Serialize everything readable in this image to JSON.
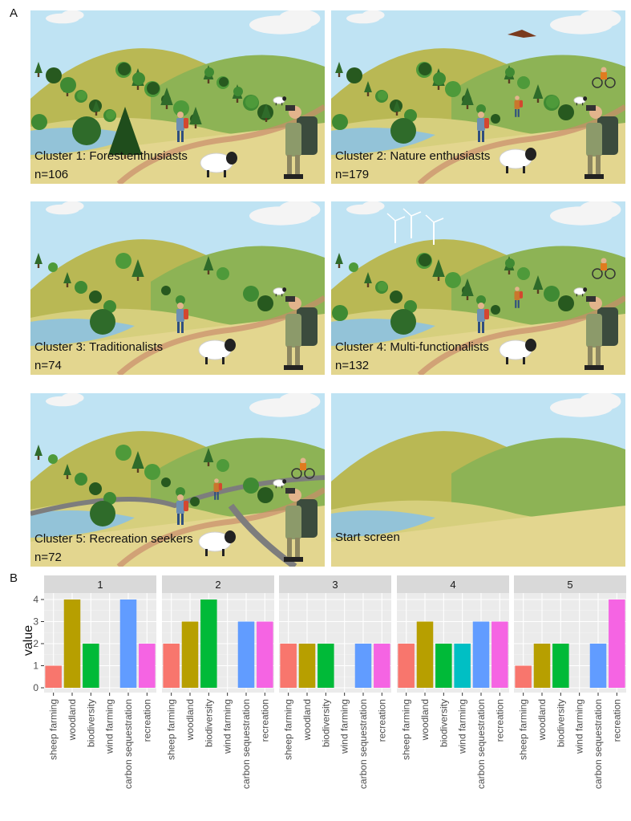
{
  "panel_labels": {
    "a": "A",
    "b": "B"
  },
  "scenes": [
    {
      "title": "Cluster 1: Forest enthusiasts",
      "n": "n=106"
    },
    {
      "title": "Cluster 2: Nature enthusiasts",
      "n": "n=179"
    },
    {
      "title": "Cluster 3: Traditionalists",
      "n": "n=74"
    },
    {
      "title": "Cluster 4: Multi-functionalists",
      "n": "n=132"
    },
    {
      "title": "Cluster 5: Recreation seekers",
      "n": "n=72"
    },
    {
      "title": "Start screen",
      "n": ""
    }
  ],
  "chart_data": {
    "type": "bar",
    "facets": [
      "1",
      "2",
      "3",
      "4",
      "5"
    ],
    "categories": [
      "sheep farming",
      "woodland",
      "biodiversity",
      "wind farming",
      "carbon sequestration",
      "recreation"
    ],
    "category_colors": [
      "#F8766D",
      "#B79F00",
      "#00BA38",
      "#00BFC4",
      "#619CFF",
      "#F564E3"
    ],
    "series": [
      {
        "facet": "1",
        "values": [
          1,
          4,
          2,
          0,
          4,
          2
        ]
      },
      {
        "facet": "2",
        "values": [
          2,
          3,
          4,
          0,
          3,
          3
        ]
      },
      {
        "facet": "3",
        "values": [
          2,
          2,
          2,
          0,
          2,
          2
        ]
      },
      {
        "facet": "4",
        "values": [
          2,
          3,
          2,
          2,
          3,
          3
        ]
      },
      {
        "facet": "5",
        "values": [
          1,
          2,
          2,
          0,
          2,
          4
        ]
      }
    ],
    "ylabel": "value",
    "xlabel": "",
    "ylim": [
      0,
      4
    ],
    "yticks": [
      0,
      1,
      2,
      3,
      4
    ],
    "ytick_labels": [
      "0",
      "1",
      "2",
      "3",
      "4"
    ],
    "grid": true,
    "legend": "none"
  }
}
